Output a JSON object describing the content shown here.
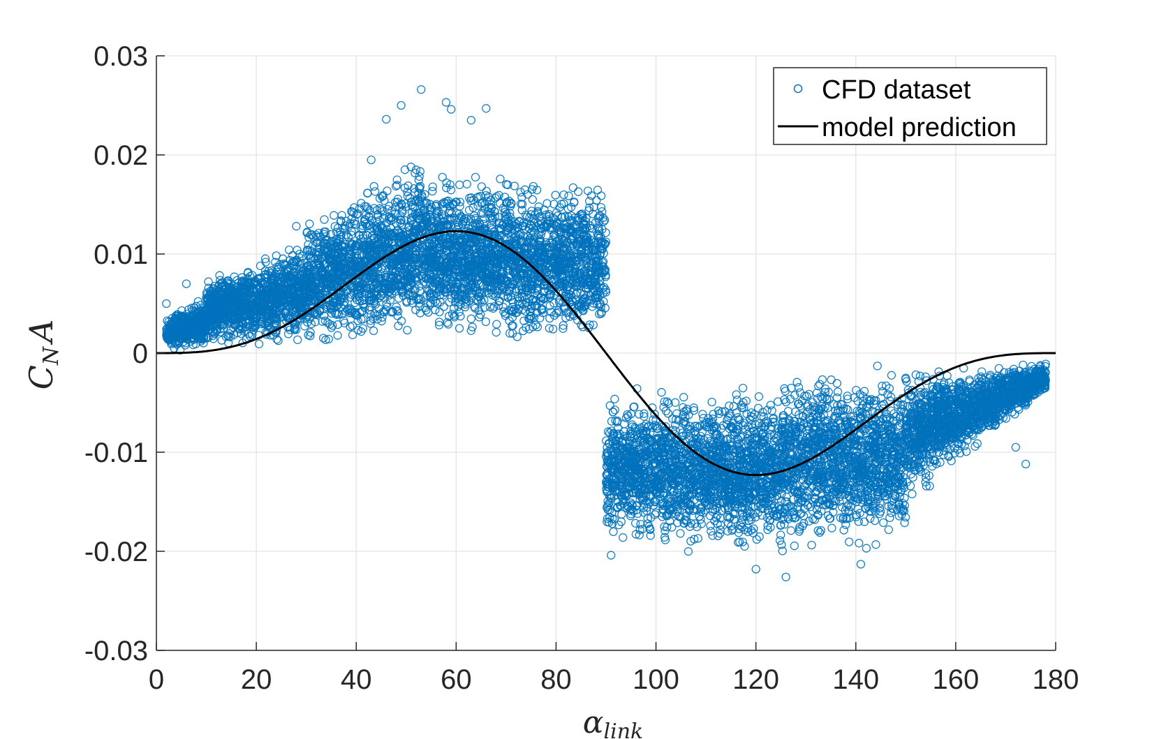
{
  "chart_data": {
    "type": "scatter",
    "xlabel": "α_link",
    "ylabel": "C_N A",
    "xlim": [
      0,
      180
    ],
    "ylim": [
      -0.03,
      0.03
    ],
    "grid": true,
    "legend_position": "top-right",
    "x_ticks": [
      0,
      20,
      40,
      60,
      80,
      100,
      120,
      140,
      160,
      180
    ],
    "x_tick_labels": [
      "0",
      "20",
      "40",
      "60",
      "80",
      "100",
      "120",
      "140",
      "160",
      "180"
    ],
    "y_ticks": [
      0.03,
      0.02,
      0.01,
      0,
      -0.01,
      -0.02,
      -0.03
    ],
    "y_tick_labels": [
      "0.03",
      "0.02",
      "0.01",
      "0",
      "-0.01",
      "-0.02",
      "-0.03"
    ],
    "series": [
      {
        "name": "CFD dataset",
        "kind": "scatter",
        "marker": "open-circle",
        "color": "#0072bd",
        "bands": [
          {
            "x_range": [
              2,
              10
            ],
            "y_lower": [
              0.0,
              0.0003
            ],
            "y_upper": [
              0.004,
              0.006
            ]
          },
          {
            "x_range": [
              10,
              30
            ],
            "y_lower": [
              0.0003,
              0.0005
            ],
            "y_upper": [
              0.008,
              0.012
            ]
          },
          {
            "x_range": [
              30,
              55
            ],
            "y_lower": [
              0.0005,
              0.0008
            ],
            "y_upper": [
              0.014,
              0.021
            ]
          },
          {
            "x_range": [
              55,
              90
            ],
            "y_lower": [
              0.0008,
              0.0003
            ],
            "y_upper": [
              0.019,
              0.018
            ]
          },
          {
            "x_range": [
              90,
              125
            ],
            "y_lower": [
              -0.02,
              -0.021
            ],
            "y_upper": [
              -0.003,
              -0.003
            ]
          },
          {
            "x_range": [
              125,
              150
            ],
            "y_lower": [
              -0.021,
              -0.02
            ],
            "y_upper": [
              -0.001,
              -0.001
            ]
          },
          {
            "x_range": [
              150,
              178
            ],
            "y_lower": [
              -0.016,
              -0.004
            ],
            "y_upper": [
              -0.001,
              -0.001
            ]
          }
        ],
        "outliers": [
          {
            "x": 53,
            "y": 0.0266
          },
          {
            "x": 58,
            "y": 0.0253
          },
          {
            "x": 49,
            "y": 0.025
          },
          {
            "x": 66,
            "y": 0.0247
          },
          {
            "x": 59,
            "y": 0.0246
          },
          {
            "x": 46,
            "y": 0.0236
          },
          {
            "x": 63,
            "y": 0.0235
          },
          {
            "x": 43,
            "y": 0.0195
          },
          {
            "x": 28,
            "y": 0.0128
          },
          {
            "x": 2,
            "y": 0.005
          },
          {
            "x": 6,
            "y": 0.007
          },
          {
            "x": 91,
            "y": -0.0204
          },
          {
            "x": 126,
            "y": -0.0226
          },
          {
            "x": 120,
            "y": -0.0218
          },
          {
            "x": 141,
            "y": -0.0213
          },
          {
            "x": 174,
            "y": -0.0112
          },
          {
            "x": 172,
            "y": -0.0095
          },
          {
            "x": 178,
            "y": -0.0011
          },
          {
            "x": 177,
            "y": -0.0035
          }
        ]
      },
      {
        "name": "model prediction",
        "kind": "line",
        "color": "#000000",
        "formula": "y = 0.0123 * sin(alpha)^2 * sin(2*alpha) / 0.6495"
      }
    ],
    "legend": [
      "CFD dataset",
      "model prediction"
    ]
  }
}
